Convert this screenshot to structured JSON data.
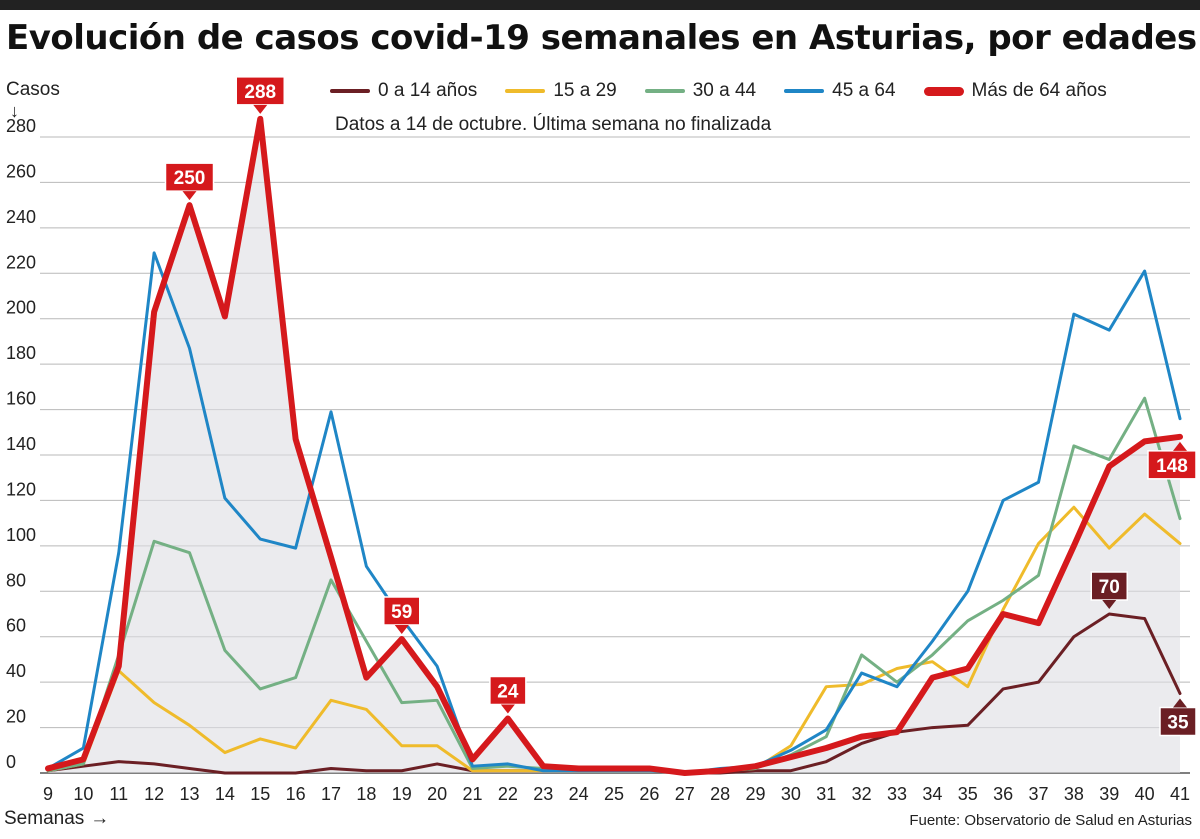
{
  "header": {
    "title": "Evolución de casos covid-19 semanales en Asturias, por edades",
    "note": "Datos a 14 de octubre. Última semana no finalizada",
    "source": "Fuente: Observatorio de Salud en Asturias"
  },
  "axes": {
    "ylabel": "Casos",
    "xlabel": "Semanas",
    "arrow_down": "↓",
    "arrow_right": "→"
  },
  "colors": {
    "0a14": "#6b1f24",
    "15a29": "#efbb2b",
    "30a44": "#74b084",
    "45a64": "#1f86c6",
    "mas64": "#d5191c",
    "grid": "#b9b9b9",
    "fill": "#dedee3"
  },
  "chart_data": {
    "type": "line",
    "title": "Evolución de casos covid-19 semanales en Asturias, por edades",
    "xlabel": "Semanas",
    "ylabel": "Casos",
    "ylim": [
      0,
      290
    ],
    "yticks": [
      0,
      20,
      40,
      60,
      80,
      100,
      120,
      140,
      160,
      180,
      200,
      220,
      240,
      260,
      280
    ],
    "x": [
      9,
      10,
      11,
      12,
      13,
      14,
      15,
      16,
      17,
      18,
      19,
      20,
      21,
      22,
      23,
      24,
      25,
      26,
      27,
      28,
      29,
      30,
      31,
      32,
      33,
      34,
      35,
      36,
      37,
      38,
      39,
      40,
      41
    ],
    "grid": true,
    "legend_position": "top",
    "series": [
      {
        "name": "0 a 14 años",
        "color": "#6b1f24",
        "width": 3,
        "values": [
          1,
          3,
          5,
          4,
          2,
          0,
          0,
          0,
          2,
          1,
          1,
          4,
          1,
          1,
          1,
          1,
          1,
          1,
          0,
          0,
          1,
          1,
          5,
          13,
          18,
          20,
          21,
          37,
          40,
          60,
          70,
          68,
          35
        ]
      },
      {
        "name": "15 a 29",
        "color": "#efbb2b",
        "width": 3,
        "values": [
          1,
          4,
          45,
          31,
          21,
          9,
          15,
          11,
          32,
          28,
          12,
          12,
          1,
          1,
          1,
          1,
          1,
          1,
          0,
          1,
          2,
          12,
          38,
          39,
          46,
          49,
          38,
          72,
          101,
          117,
          99,
          114,
          101
        ]
      },
      {
        "name": "30 a 44",
        "color": "#74b084",
        "width": 3,
        "values": [
          1,
          4,
          52,
          102,
          97,
          54,
          37,
          42,
          85,
          58,
          31,
          32,
          2,
          3,
          2,
          1,
          1,
          1,
          0,
          1,
          2,
          8,
          16,
          52,
          40,
          52,
          67,
          76,
          87,
          144,
          138,
          165,
          112
        ]
      },
      {
        "name": "45 a 64",
        "color": "#1f86c6",
        "width": 3,
        "values": [
          2,
          11,
          97,
          229,
          187,
          121,
          103,
          99,
          159,
          91,
          68,
          47,
          3,
          4,
          1,
          1,
          1,
          1,
          0,
          2,
          3,
          10,
          19,
          44,
          38,
          58,
          80,
          120,
          128,
          202,
          195,
          221,
          156
        ]
      },
      {
        "name": "Más de 64 años",
        "color": "#d5191c",
        "width": 6,
        "values": [
          2,
          6,
          47,
          203,
          250,
          201,
          288,
          147,
          95,
          42,
          59,
          38,
          6,
          24,
          3,
          2,
          2,
          2,
          0,
          1,
          3,
          7,
          11,
          16,
          18,
          42,
          46,
          70,
          66,
          100,
          135,
          146,
          148
        ]
      }
    ],
    "callouts": [
      {
        "x": 13,
        "value": 250,
        "label": "250",
        "pointer": "down",
        "color": "#d5191c"
      },
      {
        "x": 15,
        "value": 288,
        "label": "288",
        "pointer": "down",
        "color": "#d5191c"
      },
      {
        "x": 19,
        "value": 59,
        "label": "59",
        "pointer": "down",
        "color": "#d5191c"
      },
      {
        "x": 22,
        "value": 24,
        "label": "24",
        "pointer": "down",
        "color": "#d5191c"
      },
      {
        "x": 39,
        "value": 70,
        "label": "70",
        "pointer": "down",
        "color": "#6b1f24"
      },
      {
        "x": 41,
        "value": 148,
        "label": "148",
        "pointer": "up",
        "color": "#d5191c"
      },
      {
        "x": 41,
        "value": 35,
        "label": "35",
        "pointer": "up",
        "color": "#6b1f24"
      }
    ]
  }
}
